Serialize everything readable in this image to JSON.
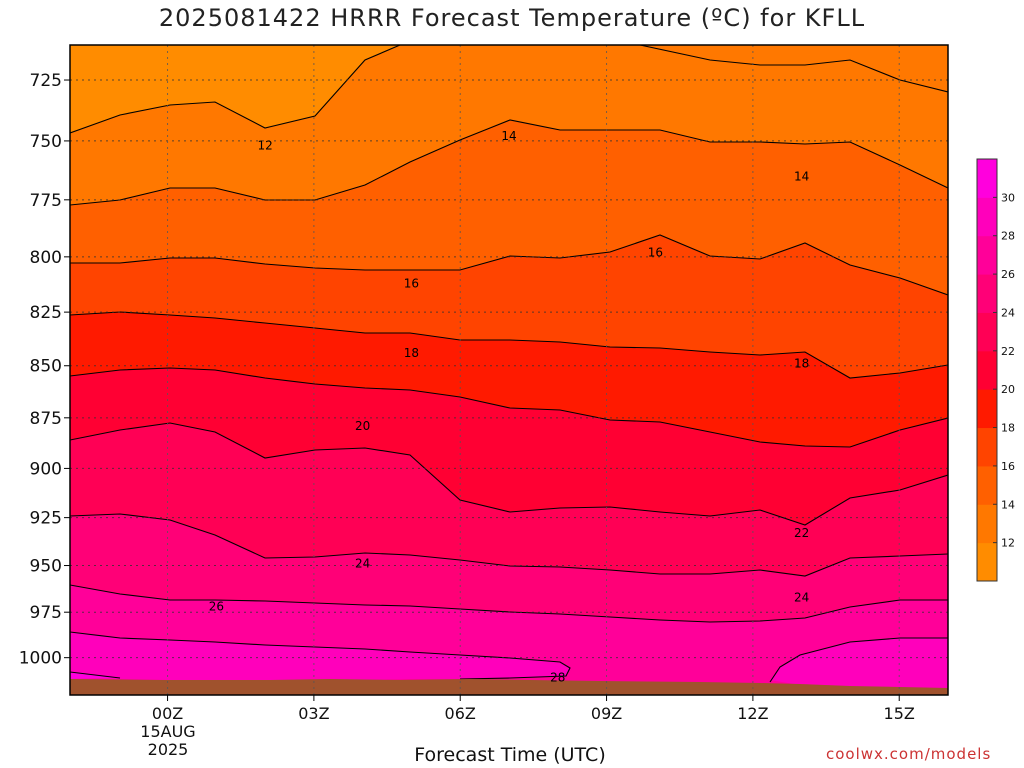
{
  "chart_data": {
    "type": "contour",
    "title": "2025081422 HRRR Forecast Temperature (ºC) for KFLL",
    "xlabel": "Forecast Time (UTC)",
    "credit": "coolwx.com/models",
    "x_ticks": [
      "00Z",
      "03Z",
      "06Z",
      "09Z",
      "12Z",
      "15Z"
    ],
    "x_date_line1": "15AUG",
    "x_date_line2": "2025",
    "x_range_hours": [
      -2,
      16
    ],
    "y_ticks": [
      725,
      750,
      775,
      800,
      825,
      850,
      875,
      900,
      925,
      950,
      975,
      1000
    ],
    "y_range_hPa": [
      711,
      1021
    ],
    "colorbar_levels": [
      12,
      14,
      16,
      18,
      20,
      22,
      24,
      26,
      28,
      30
    ],
    "colorbar_colors": [
      "#ff8c00",
      "#ff7800",
      "#ff6000",
      "#ff4400",
      "#ff1a00",
      "#ff0033",
      "#ff0055",
      "#ff0077",
      "#ff0099",
      "#ff00bb",
      "#ff00dd"
    ],
    "contour_labels": [
      {
        "value": "12",
        "hour": 2.0,
        "p": 752
      },
      {
        "value": "14",
        "hour": 7.0,
        "p": 748
      },
      {
        "value": "14",
        "hour": 13.0,
        "p": 765
      },
      {
        "value": "16",
        "hour": 5.0,
        "p": 812
      },
      {
        "value": "16",
        "hour": 10.0,
        "p": 798
      },
      {
        "value": "18",
        "hour": 5.0,
        "p": 844
      },
      {
        "value": "18",
        "hour": 13.0,
        "p": 849
      },
      {
        "value": "20",
        "hour": 4.0,
        "p": 879
      },
      {
        "value": "22",
        "hour": 13.0,
        "p": 933
      },
      {
        "value": "24",
        "hour": 4.0,
        "p": 949
      },
      {
        "value": "24",
        "hour": 13.0,
        "p": 967
      },
      {
        "value": "26",
        "hour": 1.0,
        "p": 972
      },
      {
        "value": "28",
        "hour": 8.0,
        "p": 1011
      }
    ],
    "surface_color": "#a0522d"
  }
}
